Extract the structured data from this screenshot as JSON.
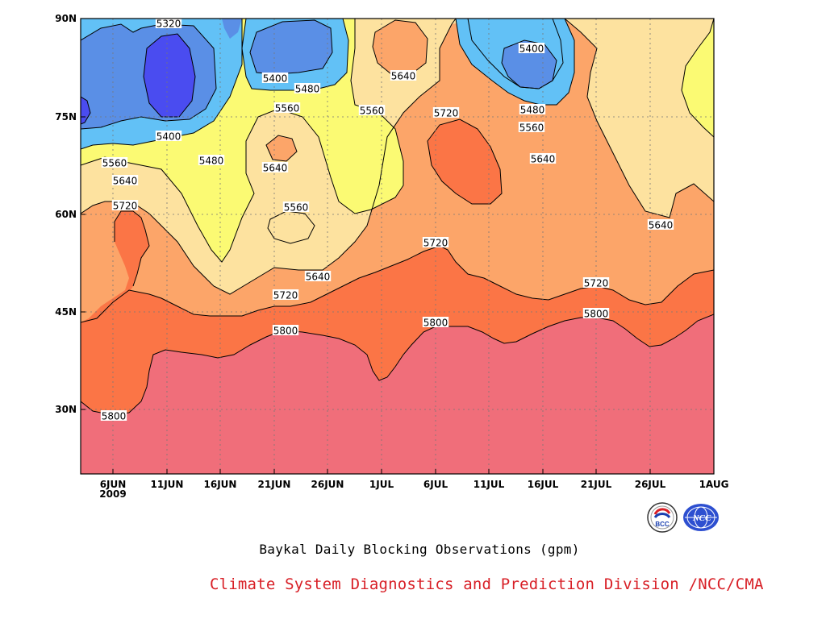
{
  "chart_data": {
    "type": "contour",
    "x_ticks": [
      "6JUN",
      "11JUN",
      "16JUN",
      "21JUN",
      "26JUN",
      "1JUL",
      "6JUL",
      "11JUL",
      "16JUL",
      "21JUL",
      "26JUL",
      "1AUG"
    ],
    "x_year_label": "2009",
    "y_ticks": [
      "90N",
      "75N",
      "60N",
      "45N",
      "30N"
    ],
    "levels": [
      5320,
      5400,
      5480,
      5560,
      5640,
      5720,
      5800
    ],
    "grid": true,
    "contour_labels": [
      "5320",
      "5400",
      "5400",
      "5400",
      "5480",
      "5480",
      "5480",
      "5560",
      "5560",
      "5560",
      "5560",
      "5560",
      "5640",
      "5640",
      "5640",
      "5640",
      "5640",
      "5640",
      "5720",
      "5720",
      "5720",
      "5720",
      "5720",
      "5800",
      "5800",
      "5800",
      "5800"
    ]
  },
  "fill_colors": {
    "le5320": "#4a4cf0",
    "b5320_5400": "#5a8fe6",
    "b5400_5480": "#62c1f6",
    "b5480_5560": "#fbfa73",
    "b5560_5640": "#fde29f",
    "b5640_5720": "#fca569",
    "b5720_5800": "#fb7546",
    "ge5800": "#f06e7a"
  },
  "caption": {
    "title": "Baykal Daily Blocking Observations (gpm)",
    "credit": "Climate System Diagnostics and Prediction Division /NCC/CMA"
  },
  "logos": [
    {
      "name": "bcc-logo",
      "text": "BCC"
    },
    {
      "name": "ncc-logo",
      "text": "NCC"
    }
  ]
}
